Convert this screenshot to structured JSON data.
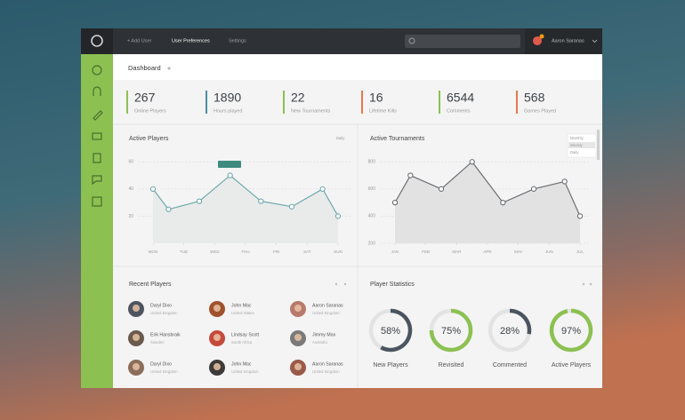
{
  "nav": {
    "items": [
      "+ Add User",
      "User Preferences",
      "Settings"
    ],
    "user": "Aaron Saranas"
  },
  "page_title": "Dashboard",
  "stats": [
    {
      "value": 267,
      "label": "Online Players",
      "color": "#8cc152"
    },
    {
      "value": 1890,
      "label": "Hours played",
      "color": "#4a8fa3"
    },
    {
      "value": 22,
      "label": "New Tournaments",
      "color": "#8cc152"
    },
    {
      "value": 16,
      "label": "Lifetime Kills",
      "color": "#e9784c"
    },
    {
      "value": 6544,
      "label": "Comments",
      "color": "#8cc152"
    },
    {
      "value": 568,
      "label": "Games Played",
      "color": "#e9784c"
    }
  ],
  "chart_data": [
    {
      "type": "line",
      "title": "Active Players",
      "options": [
        "Daily"
      ],
      "x": [
        0,
        0.5,
        1.5,
        2.5,
        3.5,
        4.5,
        5.5,
        6
      ],
      "xlim": [
        0,
        6
      ],
      "xticks": [
        {
          "value": 0,
          "label": "MON"
        },
        {
          "value": 1,
          "label": "TUE"
        },
        {
          "value": 2,
          "label": "WED"
        },
        {
          "value": 3,
          "label": "THU"
        },
        {
          "value": 4,
          "label": "FRI"
        },
        {
          "value": 5,
          "label": "SAT"
        },
        {
          "value": 6,
          "label": "SUN"
        }
      ],
      "ylim": [
        0,
        70
      ],
      "yticks": [
        20,
        40,
        60
      ],
      "grid": true,
      "series": [
        {
          "name": "Active Players",
          "color": "#6fa9ad",
          "values": [
            40,
            25,
            31,
            50,
            31,
            27,
            40,
            20
          ]
        }
      ]
    },
    {
      "type": "line",
      "title": "Active Tournaments",
      "options": [
        "Monthly",
        "Weekly",
        "Daily"
      ],
      "x": [
        0,
        0.5,
        1.5,
        2.5,
        3.5,
        4.5,
        5.5,
        6
      ],
      "xlim": [
        0,
        6
      ],
      "xticks": [
        {
          "value": 0,
          "label": "JAN"
        },
        {
          "value": 1,
          "label": "FEB"
        },
        {
          "value": 2,
          "label": "MAR"
        },
        {
          "value": 3,
          "label": "APR"
        },
        {
          "value": 4,
          "label": "MAY"
        },
        {
          "value": 5,
          "label": "JUN"
        },
        {
          "value": 6,
          "label": "JUL"
        }
      ],
      "ylim": [
        200,
        880
      ],
      "yticks": [
        200,
        400,
        600,
        800
      ],
      "grid": true,
      "series": [
        {
          "name": "Active Tournaments",
          "color": "#6b6e73",
          "values": [
            500,
            700,
            600,
            800,
            500,
            600,
            655,
            400
          ]
        }
      ]
    }
  ],
  "recent_players": {
    "title": "Recent Players",
    "players": [
      {
        "name": "Daryl Dixo",
        "country": "United Kingdom"
      },
      {
        "name": "John Mac",
        "country": "United States"
      },
      {
        "name": "Aaron Saranas",
        "country": "United Kingdom"
      },
      {
        "name": "Erik Hansbraik",
        "country": "Sweden"
      },
      {
        "name": "Lindsay Scott",
        "country": "South Africa"
      },
      {
        "name": "Jimmy Max",
        "country": "Australia"
      },
      {
        "name": "Daryl Dixo",
        "country": "United Kingdom"
      },
      {
        "name": "John Mac",
        "country": "United Kingdom"
      },
      {
        "name": "Aaron Saranas",
        "country": "United Kingdom"
      }
    ]
  },
  "player_statistics": {
    "title": "Player Statistics",
    "items": [
      {
        "label": "New Players",
        "value": 58,
        "value_label": "58%",
        "color": "#4b5561"
      },
      {
        "label": "Revisited",
        "value": 75,
        "value_label": "75%",
        "color": "#8cc152"
      },
      {
        "label": "Commented",
        "value": 28,
        "value_label": "28%",
        "color": "#4b5561"
      },
      {
        "label": "Active Players",
        "value": 97,
        "value_label": "97%",
        "color": "#8cc152"
      }
    ]
  }
}
